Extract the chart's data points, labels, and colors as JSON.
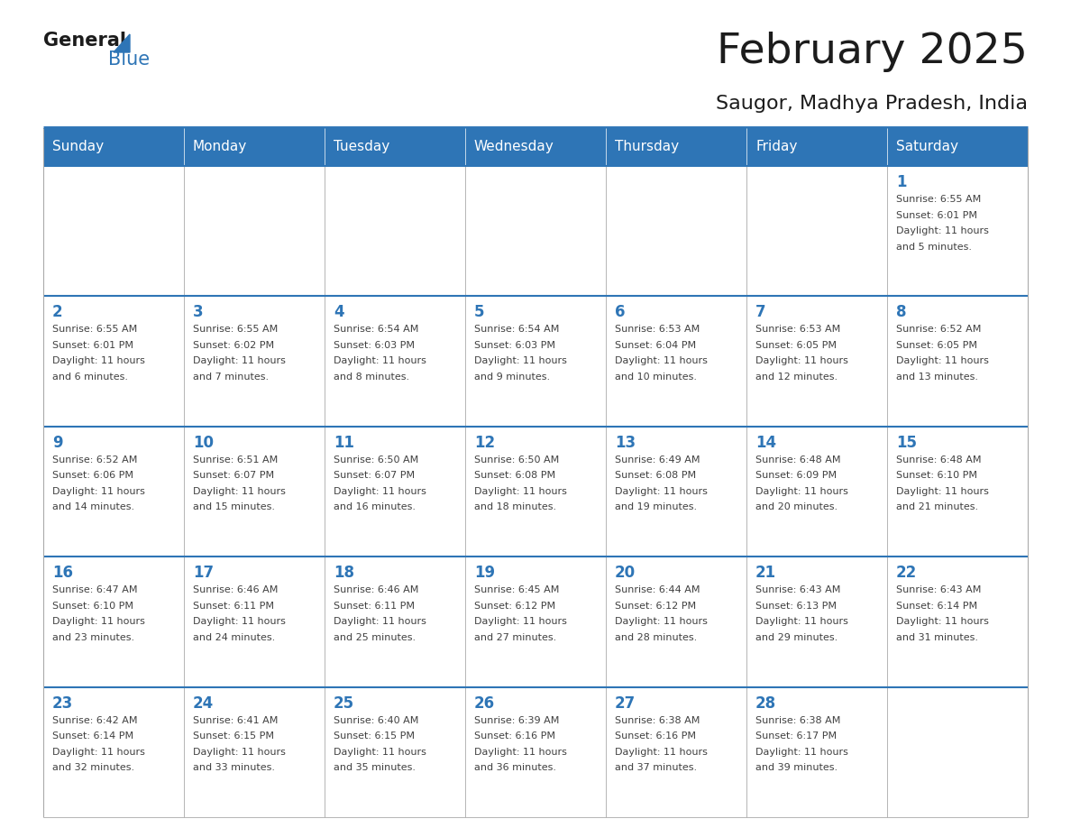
{
  "title": "February 2025",
  "subtitle": "Saugor, Madhya Pradesh, India",
  "header_bg": "#2E75B6",
  "header_text": "#FFFFFF",
  "cell_bg": "#FFFFFF",
  "day_number_color": "#2E75B6",
  "text_color": "#404040",
  "line_color": "#2E75B6",
  "border_color": "#AAAAAA",
  "days_of_week": [
    "Sunday",
    "Monday",
    "Tuesday",
    "Wednesday",
    "Thursday",
    "Friday",
    "Saturday"
  ],
  "weeks": [
    [
      {
        "day": null,
        "info": null
      },
      {
        "day": null,
        "info": null
      },
      {
        "day": null,
        "info": null
      },
      {
        "day": null,
        "info": null
      },
      {
        "day": null,
        "info": null
      },
      {
        "day": null,
        "info": null
      },
      {
        "day": 1,
        "info": "Sunrise: 6:55 AM\nSunset: 6:01 PM\nDaylight: 11 hours\nand 5 minutes."
      }
    ],
    [
      {
        "day": 2,
        "info": "Sunrise: 6:55 AM\nSunset: 6:01 PM\nDaylight: 11 hours\nand 6 minutes."
      },
      {
        "day": 3,
        "info": "Sunrise: 6:55 AM\nSunset: 6:02 PM\nDaylight: 11 hours\nand 7 minutes."
      },
      {
        "day": 4,
        "info": "Sunrise: 6:54 AM\nSunset: 6:03 PM\nDaylight: 11 hours\nand 8 minutes."
      },
      {
        "day": 5,
        "info": "Sunrise: 6:54 AM\nSunset: 6:03 PM\nDaylight: 11 hours\nand 9 minutes."
      },
      {
        "day": 6,
        "info": "Sunrise: 6:53 AM\nSunset: 6:04 PM\nDaylight: 11 hours\nand 10 minutes."
      },
      {
        "day": 7,
        "info": "Sunrise: 6:53 AM\nSunset: 6:05 PM\nDaylight: 11 hours\nand 12 minutes."
      },
      {
        "day": 8,
        "info": "Sunrise: 6:52 AM\nSunset: 6:05 PM\nDaylight: 11 hours\nand 13 minutes."
      }
    ],
    [
      {
        "day": 9,
        "info": "Sunrise: 6:52 AM\nSunset: 6:06 PM\nDaylight: 11 hours\nand 14 minutes."
      },
      {
        "day": 10,
        "info": "Sunrise: 6:51 AM\nSunset: 6:07 PM\nDaylight: 11 hours\nand 15 minutes."
      },
      {
        "day": 11,
        "info": "Sunrise: 6:50 AM\nSunset: 6:07 PM\nDaylight: 11 hours\nand 16 minutes."
      },
      {
        "day": 12,
        "info": "Sunrise: 6:50 AM\nSunset: 6:08 PM\nDaylight: 11 hours\nand 18 minutes."
      },
      {
        "day": 13,
        "info": "Sunrise: 6:49 AM\nSunset: 6:08 PM\nDaylight: 11 hours\nand 19 minutes."
      },
      {
        "day": 14,
        "info": "Sunrise: 6:48 AM\nSunset: 6:09 PM\nDaylight: 11 hours\nand 20 minutes."
      },
      {
        "day": 15,
        "info": "Sunrise: 6:48 AM\nSunset: 6:10 PM\nDaylight: 11 hours\nand 21 minutes."
      }
    ],
    [
      {
        "day": 16,
        "info": "Sunrise: 6:47 AM\nSunset: 6:10 PM\nDaylight: 11 hours\nand 23 minutes."
      },
      {
        "day": 17,
        "info": "Sunrise: 6:46 AM\nSunset: 6:11 PM\nDaylight: 11 hours\nand 24 minutes."
      },
      {
        "day": 18,
        "info": "Sunrise: 6:46 AM\nSunset: 6:11 PM\nDaylight: 11 hours\nand 25 minutes."
      },
      {
        "day": 19,
        "info": "Sunrise: 6:45 AM\nSunset: 6:12 PM\nDaylight: 11 hours\nand 27 minutes."
      },
      {
        "day": 20,
        "info": "Sunrise: 6:44 AM\nSunset: 6:12 PM\nDaylight: 11 hours\nand 28 minutes."
      },
      {
        "day": 21,
        "info": "Sunrise: 6:43 AM\nSunset: 6:13 PM\nDaylight: 11 hours\nand 29 minutes."
      },
      {
        "day": 22,
        "info": "Sunrise: 6:43 AM\nSunset: 6:14 PM\nDaylight: 11 hours\nand 31 minutes."
      }
    ],
    [
      {
        "day": 23,
        "info": "Sunrise: 6:42 AM\nSunset: 6:14 PM\nDaylight: 11 hours\nand 32 minutes."
      },
      {
        "day": 24,
        "info": "Sunrise: 6:41 AM\nSunset: 6:15 PM\nDaylight: 11 hours\nand 33 minutes."
      },
      {
        "day": 25,
        "info": "Sunrise: 6:40 AM\nSunset: 6:15 PM\nDaylight: 11 hours\nand 35 minutes."
      },
      {
        "day": 26,
        "info": "Sunrise: 6:39 AM\nSunset: 6:16 PM\nDaylight: 11 hours\nand 36 minutes."
      },
      {
        "day": 27,
        "info": "Sunrise: 6:38 AM\nSunset: 6:16 PM\nDaylight: 11 hours\nand 37 minutes."
      },
      {
        "day": 28,
        "info": "Sunrise: 6:38 AM\nSunset: 6:17 PM\nDaylight: 11 hours\nand 39 minutes."
      },
      {
        "day": null,
        "info": null
      }
    ]
  ]
}
